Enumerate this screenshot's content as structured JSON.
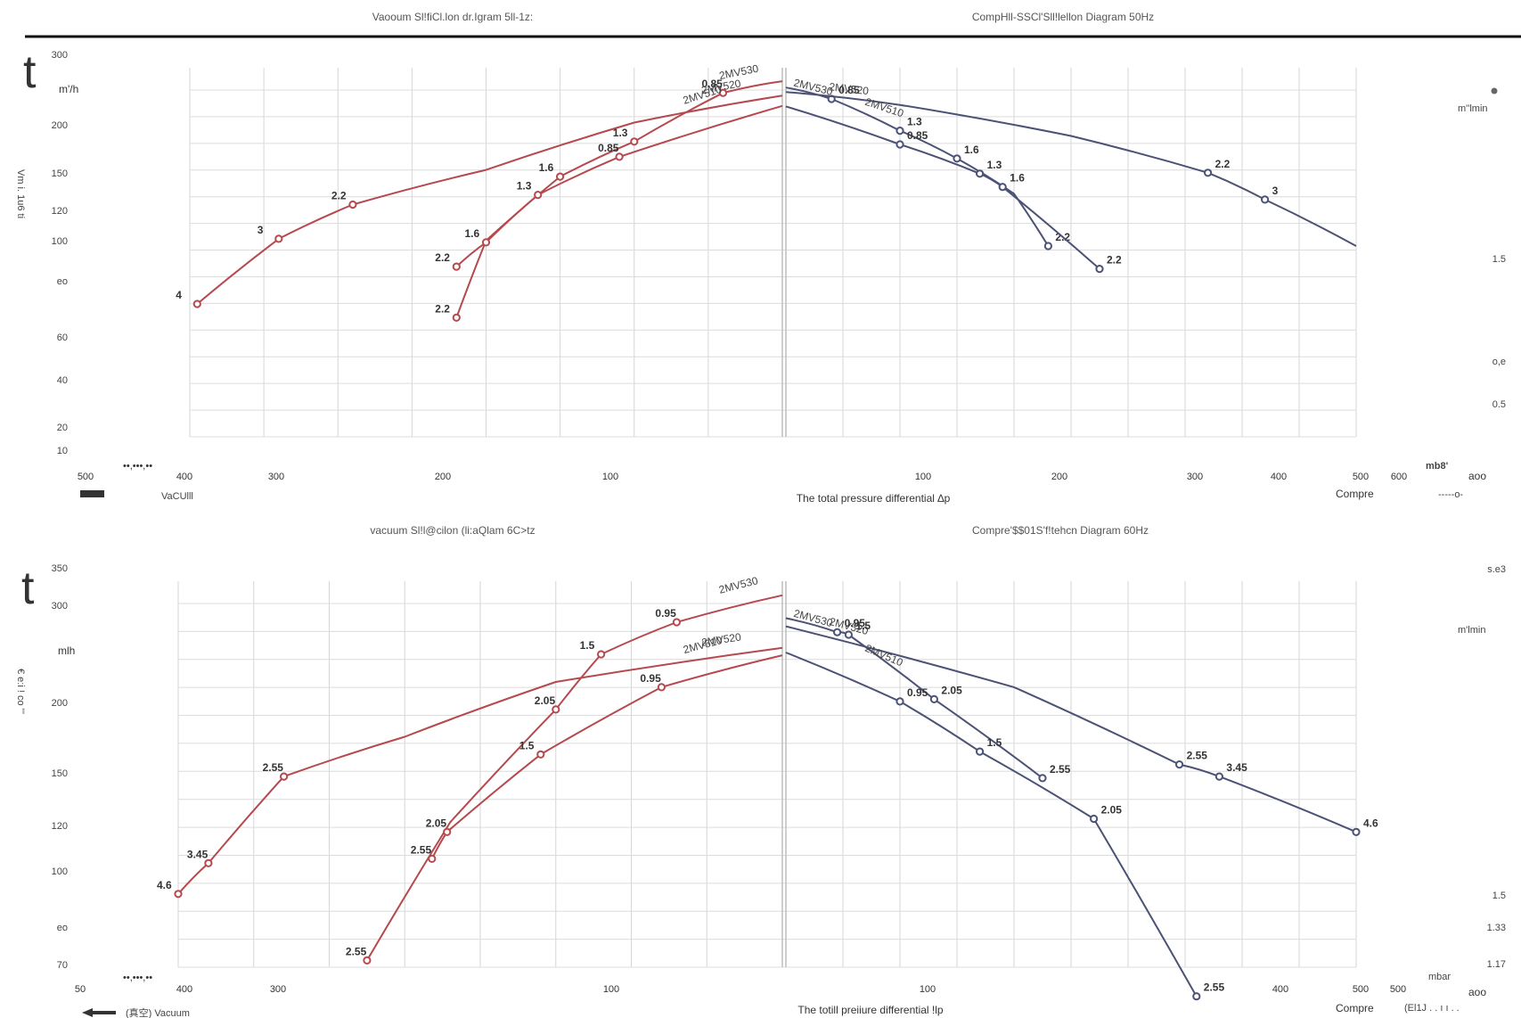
{
  "page": {
    "top_rule_color": "#111111",
    "colors": {
      "vacuum": "#b5494d",
      "compressor": "#4b5276",
      "grid": "#d6d6d6"
    }
  },
  "chart_data": [
    {
      "type": "line",
      "title": "Vaooum Sl!fiCl.lon dr.Igram 5ll-1z:",
      "xlabel": "VaCUlll",
      "ylabel": "",
      "panel_marker": "t",
      "left_unit": "m'/h",
      "left_y_ticks": [
        "300",
        "200",
        "150",
        "120",
        "100",
        "eo",
        "60",
        "40",
        "20",
        "10"
      ],
      "left_rotated_text": "Vm i. 1u6 ti",
      "x_ticks": [
        "500",
        "400",
        "300",
        "200",
        "100"
      ],
      "x_extra_text": "••,•••,••",
      "xlim": [
        0,
        400
      ],
      "ylim": [
        10,
        300
      ],
      "series": [
        {
          "name": "2MV530",
          "x": [
            0,
            40,
            100,
            150,
            200,
            220
          ],
          "y": [
            265,
            238,
            152,
            110,
            61,
            30
          ],
          "point_labels": [
            "",
            "0.85",
            "1.3",
            "1.6",
            "",
            "2.2"
          ]
        },
        {
          "name": "2MV520",
          "x": [
            0,
            100,
            200,
            290,
            340,
            395
          ],
          "y": [
            232,
            181,
            117,
            85,
            62,
            34
          ],
          "point_labels": [
            "",
            "",
            "",
            "2.2",
            "3",
            "4"
          ]
        },
        {
          "name": "2MV510",
          "x": [
            0,
            110,
            165,
            200,
            220
          ],
          "y": [
            211,
            132,
            93,
            60,
            48
          ],
          "point_labels": [
            "",
            "0.85",
            "1.3",
            "1.6",
            "2.2"
          ]
        }
      ]
    },
    {
      "type": "line",
      "title": "CompHll-SSCl'Sll!lellon Diagram 50Hz",
      "xlabel": "Compre",
      "ylabel": "",
      "right_unit": "m''lmin",
      "right_y_ticks": [
        "1.5",
        "o,e",
        "0.5"
      ],
      "x_ticks": [
        "100",
        "200",
        "300",
        "400",
        "500",
        "600"
      ],
      "xlim": [
        0,
        500
      ],
      "unit_label": "mb8'",
      "corner_text": "aoo",
      "dash_text": "-----o-",
      "series": [
        {
          "name": "2MV530",
          "x": [
            0,
            40,
            100,
            150,
            200,
            230
          ],
          "y": [
            250,
            225,
            168,
            130,
            94,
            58
          ],
          "point_labels": [
            "",
            "0.85",
            "1.3",
            "1.6",
            "",
            "2.2"
          ]
        },
        {
          "name": "2MV520",
          "x": [
            0,
            100,
            250,
            370,
            420,
            500
          ],
          "y": [
            240,
            213,
            160,
            114,
            89,
            58
          ],
          "point_labels": [
            "",
            "",
            "",
            "2.2",
            "3",
            ""
          ]
        },
        {
          "name": "2MV510",
          "x": [
            0,
            100,
            170,
            190,
            275
          ],
          "y": [
            210,
            148,
            113,
            100,
            47
          ],
          "point_labels": [
            "",
            "0.85",
            "1.3",
            "1.6",
            "2.2"
          ]
        }
      ]
    },
    {
      "type": "line",
      "title": "vacuum Sl!l@cilon (li:aQlam 6C>tz",
      "xlabel": "(真空) Vacuum",
      "ylabel": "",
      "panel_marker": "t",
      "left_unit": "mlh",
      "left_y_ticks": [
        "350",
        "300",
        "200",
        "150",
        "120",
        "100",
        "eo",
        "70"
      ],
      "left_rotated_text": "€ e:i ! co '''",
      "x_ticks": [
        "50",
        "400",
        "300",
        "100"
      ],
      "x_extra_text": "••,•••,••",
      "xlim": [
        0,
        400
      ],
      "ylim": [
        70,
        350
      ],
      "series": [
        {
          "name": "2MV530",
          "x": [
            0,
            70,
            120,
            150,
            220,
            275
          ],
          "y": [
            330,
            295,
            258,
            205,
            128,
            72
          ],
          "point_labels": [
            "",
            "0.95",
            "1.5",
            "2.05",
            "",
            "2.55"
          ]
        },
        {
          "name": "2MV520",
          "x": [
            0,
            150,
            250,
            330,
            380,
            400
          ],
          "y": [
            265,
            230,
            183,
            155,
            108,
            95
          ],
          "point_labels": [
            "",
            "",
            "",
            "2.55",
            "3.45",
            "4.6"
          ]
        },
        {
          "name": "2MV510",
          "x": [
            0,
            80,
            160,
            222,
            232
          ],
          "y": [
            257,
            225,
            170,
            123,
            110
          ],
          "point_labels": [
            "",
            "0.95",
            "1.5",
            "2.05",
            "2.55"
          ]
        }
      ]
    },
    {
      "type": "line",
      "title": "Compre'$$01S'f!tehcn Diagram 60Hz",
      "xlabel": "Compre",
      "ylabel": "",
      "right_unit": "m'lmin",
      "right_y_ticks": [
        "s.e3",
        "1.5",
        "1.33",
        "1.17"
      ],
      "x_ticks": [
        "100",
        "400",
        "500",
        "500"
      ],
      "xlim": [
        0,
        500
      ],
      "unit_label": "mbar",
      "corner_text": "aoo",
      "dash_text": "(El1J . . ı ı . .",
      "series": [
        {
          "name": "2MV530",
          "x": [
            0,
            45,
            55,
            130,
            225
          ],
          "y": [
            300,
            283,
            280,
            214,
            154
          ],
          "point_labels": [
            "",
            "0.95",
            "1.5",
            "2.05",
            "2.55"
          ]
        },
        {
          "name": "2MV520",
          "x": [
            0,
            200,
            345,
            380,
            500
          ],
          "y": [
            290,
            225,
            163,
            155,
            123
          ],
          "point_labels": [
            "",
            "",
            "2.55",
            "3.45",
            "4.6"
          ]
        },
        {
          "name": "2MV510",
          "x": [
            0,
            100,
            170,
            270,
            360
          ],
          "y": [
            260,
            212,
            172,
            130,
            62
          ],
          "point_labels": [
            "",
            "0.95",
            "1.5",
            "2.05",
            "2.55"
          ]
        }
      ]
    }
  ],
  "footer": {
    "top_x_title": "The total pressure differential ∆p",
    "bottom_x_title": "The totill preiiure differential !lp"
  }
}
